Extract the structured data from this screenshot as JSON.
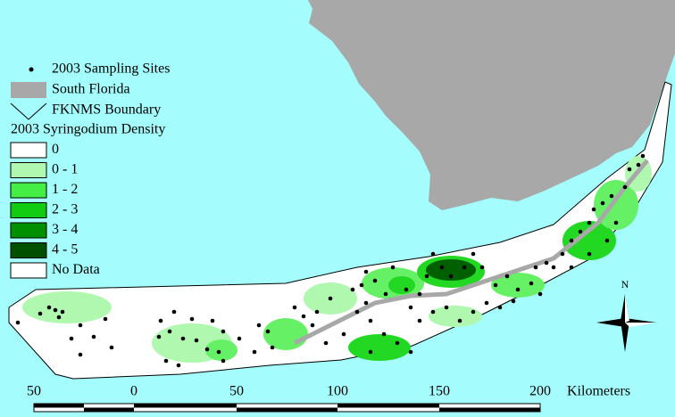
{
  "legend": {
    "sampling_sites": "2003 Sampling Sites",
    "south_florida": "South Florida",
    "boundary": "FKNMS Boundary",
    "density_title": "2003 Syringodium Density",
    "classes": [
      "0",
      "0 - 1",
      "1 - 2",
      "2 - 3",
      "3 - 4",
      "4 - 5",
      "No Data"
    ]
  },
  "north_arrow": "N",
  "scale_bar": {
    "labels": [
      "50",
      "0",
      "50",
      "100",
      "150",
      "200"
    ],
    "unit": "Kilometers"
  }
}
